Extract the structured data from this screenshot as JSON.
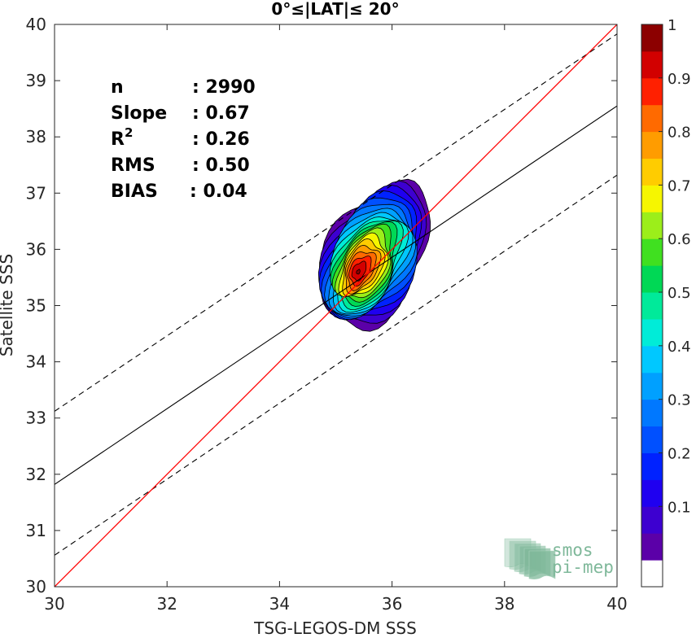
{
  "chart_data": {
    "type": "contour",
    "title": "0°≤|LAT|≤ 20°",
    "xlabel": "TSG-LEGOS-DM SSS",
    "ylabel": "Satellite SSS",
    "xlim": [
      30,
      40
    ],
    "ylim": [
      30,
      40
    ],
    "xticks": [
      "30",
      "32",
      "34",
      "36",
      "38",
      "40"
    ],
    "yticks": [
      "30",
      "31",
      "32",
      "33",
      "34",
      "35",
      "36",
      "37",
      "38",
      "39",
      "40"
    ],
    "grid": false,
    "stats": [
      {
        "name": "n",
        "value": ": 2990"
      },
      {
        "name": "Slope",
        "value": ": 0.67"
      },
      {
        "name": "R",
        "sup": "2",
        "value": ": 0.26"
      },
      {
        "name": "RMS",
        "value": ": 0.50"
      },
      {
        "name": "BIAS",
        "value": ": 0.04"
      }
    ],
    "lines": {
      "one_to_one": {
        "color": "#ff0000",
        "slope": 1,
        "intercept": 0
      },
      "regression": {
        "color": "#000000",
        "points": [
          [
            30,
            31.82
          ],
          [
            40,
            38.55
          ]
        ]
      },
      "bound_upper": {
        "dash": true,
        "points": [
          [
            30,
            33.12
          ],
          [
            40,
            39.83
          ]
        ]
      },
      "bound_lower": {
        "dash": true,
        "points": [
          [
            30,
            30.56
          ],
          [
            40,
            37.32
          ]
        ]
      }
    },
    "density_peak": {
      "x": 35.4,
      "y": 35.6
    },
    "colorbar": {
      "ticks": [
        "0.1",
        "0.2",
        "0.3",
        "0.4",
        "0.5",
        "0.6",
        "0.7",
        "0.8",
        "0.9",
        "1"
      ],
      "levels": [
        0.05,
        0.1,
        0.15,
        0.2,
        0.25,
        0.3,
        0.35,
        0.4,
        0.45,
        0.5,
        0.55,
        0.6,
        0.65,
        0.7,
        0.75,
        0.8,
        0.85,
        0.9,
        0.95,
        1.0
      ],
      "colors": [
        "#ffffff",
        "#5b00a8",
        "#3d00d0",
        "#1f00f0",
        "#0022ff",
        "#0050ff",
        "#0078ff",
        "#00a0ff",
        "#00c8ff",
        "#00ecd8",
        "#00ea9a",
        "#00d855",
        "#40e020",
        "#9cee1a",
        "#f6f600",
        "#ffcc00",
        "#ff9c00",
        "#ff6a00",
        "#ff2000",
        "#d20000",
        "#8c0000"
      ]
    }
  },
  "logo": {
    "line1": "smos",
    "line2": "pi-mep"
  }
}
